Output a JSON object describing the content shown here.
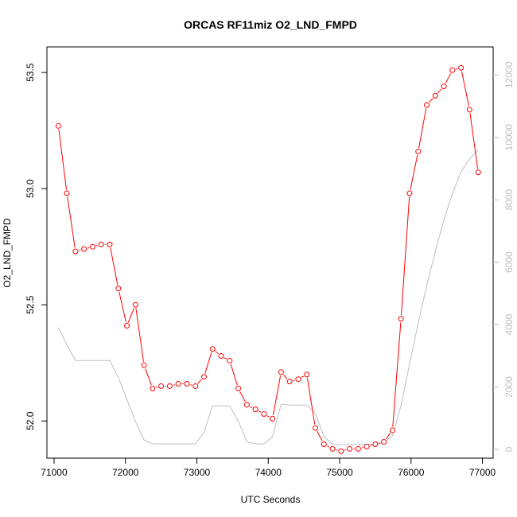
{
  "chart_data": {
    "type": "line",
    "title": "ORCAS RF11miz O2_LND_FMPD",
    "xlabel": "UTC Seconds",
    "ylabel": "O2_LND_FMPD",
    "xlim": [
      70900,
      77150
    ],
    "ylim": [
      51.84,
      53.61
    ],
    "y2lim": [
      -280,
      12900
    ],
    "x_ticks": [
      71000,
      72000,
      73000,
      74000,
      75000,
      76000,
      77000
    ],
    "y_ticks": [
      52.0,
      52.5,
      53.0,
      53.5
    ],
    "y_tick_labels": [
      "52.0",
      "52.5",
      "53.0",
      "53.5"
    ],
    "y2_ticks": [
      0,
      2000,
      4000,
      6000,
      8000,
      10000,
      12000
    ],
    "colors": {
      "series": "#ff0000",
      "secondary": "#bebebe",
      "axis": "#000000"
    },
    "series": [
      {
        "marker": "open-circle",
        "x": [
          71060,
          71180,
          71300,
          71420,
          71540,
          71660,
          71780,
          71900,
          72020,
          72140,
          72260,
          72380,
          72500,
          72620,
          72740,
          72860,
          72980,
          73100,
          73220,
          73340,
          73460,
          73580,
          73700,
          73820,
          73940,
          74060,
          74180,
          74300,
          74420,
          74540,
          74660,
          74780,
          74900,
          75020,
          75140,
          75260,
          75380,
          75500,
          75620,
          75740,
          75860,
          75980,
          76100,
          76220,
          76340,
          76460,
          76580,
          76700,
          76820,
          76940
        ],
        "values": [
          53.27,
          52.98,
          52.73,
          52.74,
          52.75,
          52.76,
          52.76,
          52.57,
          52.41,
          52.5,
          52.24,
          52.14,
          52.15,
          52.15,
          52.16,
          52.16,
          52.15,
          52.19,
          52.31,
          52.28,
          52.26,
          52.14,
          52.07,
          52.05,
          52.03,
          52.01,
          52.21,
          52.17,
          52.18,
          52.2,
          51.97,
          51.9,
          51.88,
          51.87,
          51.88,
          51.88,
          51.89,
          51.9,
          51.91,
          51.96,
          52.44,
          52.98,
          53.16,
          53.36,
          53.4,
          53.44,
          53.51,
          53.52,
          53.34,
          53.07
        ]
      },
      {
        "axis": "right",
        "x": [
          71060,
          71180,
          71300,
          71420,
          71540,
          71660,
          71780,
          71900,
          72020,
          72140,
          72260,
          72380,
          72500,
          72620,
          72740,
          72860,
          72980,
          73100,
          73220,
          73340,
          73460,
          73580,
          73700,
          73820,
          73940,
          74060,
          74180,
          74300,
          74420,
          74540,
          74660,
          74780,
          74900,
          75020,
          75140,
          75260,
          75380,
          75500,
          75620,
          75740,
          75860,
          75980,
          76100,
          76220,
          76340,
          76460,
          76580,
          76700,
          76820,
          76940
        ],
        "values": [
          3900,
          3350,
          2850,
          2850,
          2850,
          2850,
          2850,
          2300,
          1600,
          900,
          300,
          180,
          180,
          180,
          180,
          180,
          180,
          550,
          1400,
          1400,
          1400,
          900,
          250,
          180,
          180,
          400,
          1450,
          1420,
          1420,
          1420,
          1150,
          420,
          170,
          150,
          150,
          150,
          150,
          170,
          220,
          430,
          1400,
          2750,
          4050,
          5250,
          6350,
          7350,
          8200,
          8900,
          9300,
          9600
        ]
      }
    ]
  }
}
